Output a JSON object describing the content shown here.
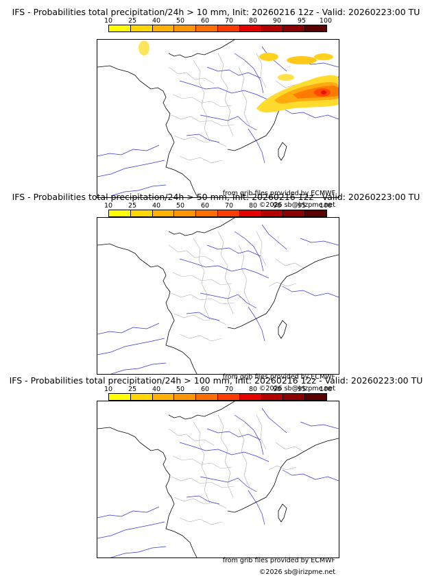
{
  "panels": [
    {
      "title": "IFS - Probabilities total precipitation/24h > 10 mm, Init: 20260216 12z - Valid: 20260223:00 TU"
    },
    {
      "title": "IFS - Probabilities total precipitation/24h > 50 mm, Init: 20260216 12z - Valid: 20260223:00 TU"
    },
    {
      "title": "IFS - Probabilities total precipitation/24h > 100 mm, Init: 20260216 12z - Valid: 20260223:00 TU"
    }
  ],
  "colorbar": {
    "labels": [
      "10",
      "25",
      "40",
      "50",
      "60",
      "70",
      "80",
      "90",
      "95",
      "100"
    ],
    "colors": [
      "#ffff00",
      "#ffd700",
      "#ffb300",
      "#ff9500",
      "#ff6f00",
      "#ff3c00",
      "#e40000",
      "#b40000",
      "#8b0000",
      "#5a0000"
    ]
  },
  "credits": {
    "source": "from grib files provided by ECMWF",
    "copyright": "©2026 sb@irizpme.net"
  },
  "colors": {
    "coast": "#000000",
    "rivers": "#3333dd",
    "borders": "#b0b0b0"
  }
}
